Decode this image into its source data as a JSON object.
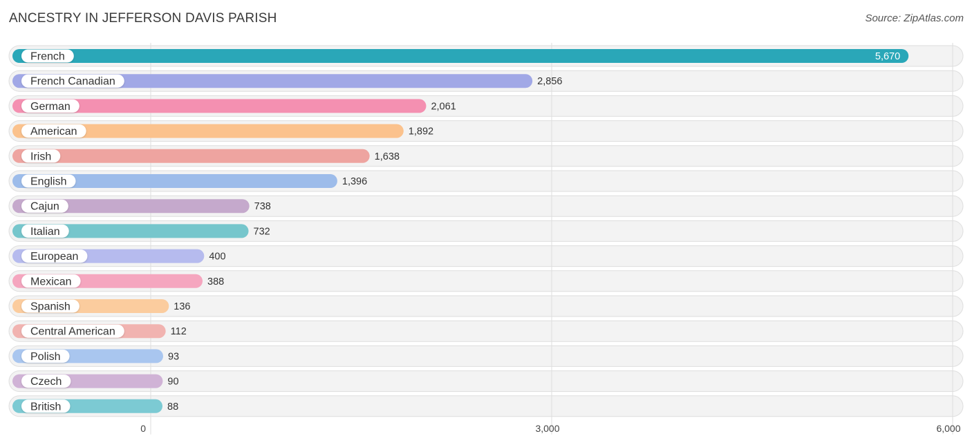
{
  "header": {
    "title": "ANCESTRY IN JEFFERSON DAVIS PARISH",
    "source": "Source: ZipAtlas.com"
  },
  "chart_data": {
    "type": "bar",
    "orientation": "horizontal",
    "title": "ANCESTRY IN JEFFERSON DAVIS PARISH",
    "categories": [
      "French",
      "French Canadian",
      "German",
      "American",
      "Irish",
      "English",
      "Cajun",
      "Italian",
      "European",
      "Mexican",
      "Spanish",
      "Central American",
      "Polish",
      "Czech",
      "British"
    ],
    "values": [
      5670,
      2856,
      2061,
      1892,
      1638,
      1396,
      738,
      732,
      400,
      388,
      136,
      112,
      93,
      90,
      88
    ],
    "value_labels": [
      "5,670",
      "2,856",
      "2,061",
      "1,892",
      "1,638",
      "1,396",
      "738",
      "732",
      "400",
      "388",
      "136",
      "112",
      "93",
      "90",
      "88"
    ],
    "colors": [
      "#2aa7b8",
      "#a1a8e6",
      "#f490b1",
      "#fbc28d",
      "#eea4a0",
      "#9dbcea",
      "#c5a9cc",
      "#76c6cc",
      "#b6bbee",
      "#f5a6bf",
      "#fbcc9e",
      "#f1b3b0",
      "#a9c6ef",
      "#d0b3d6",
      "#7ccad3"
    ],
    "xlim": [
      0,
      6000
    ],
    "xticks": [
      0,
      3000,
      6000
    ],
    "xtick_labels": [
      "0",
      "3,000",
      "6,000"
    ],
    "grid": true,
    "legend": "none"
  }
}
